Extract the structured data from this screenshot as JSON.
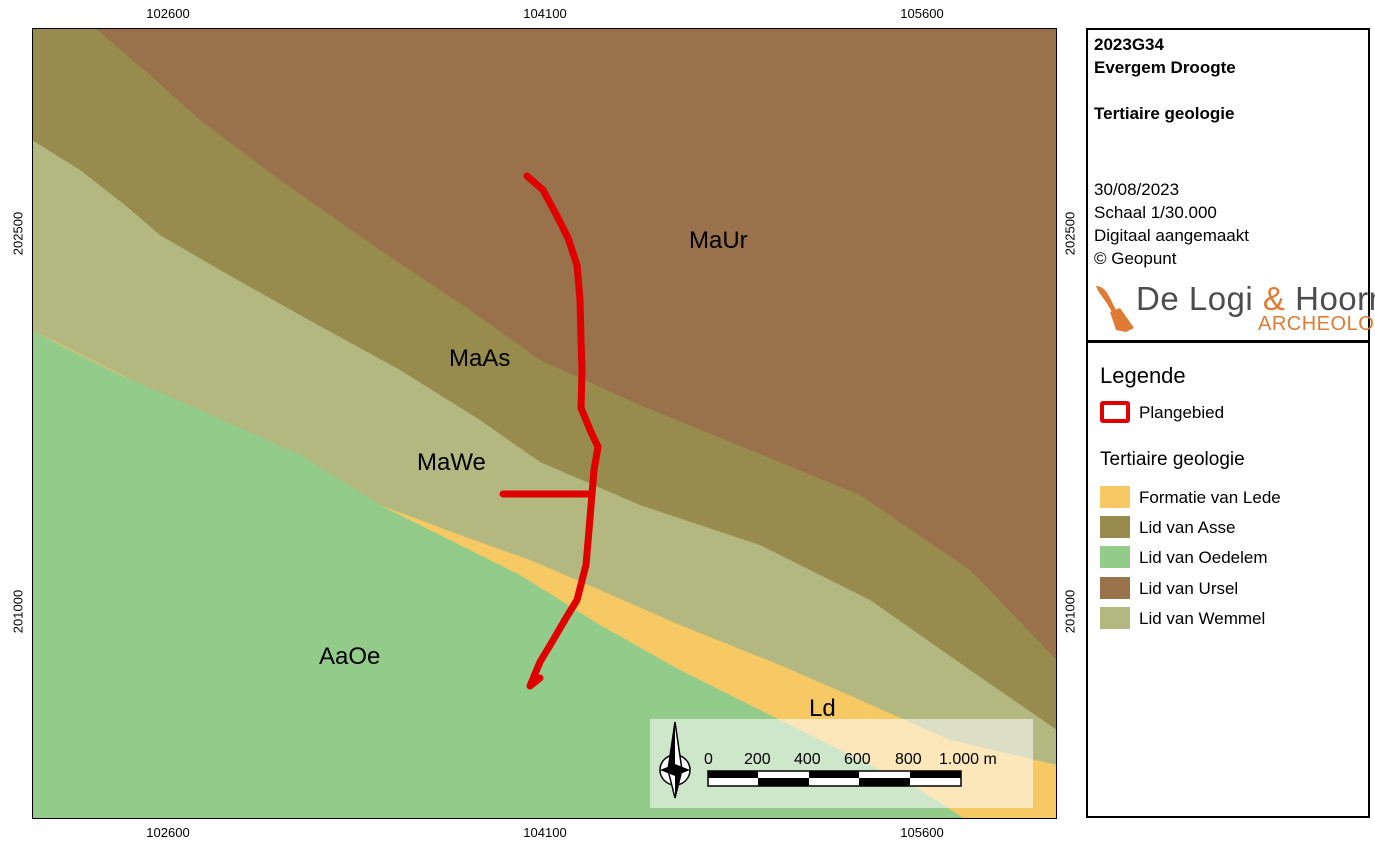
{
  "coordinates": {
    "x_ticks": [
      "102600",
      "104100",
      "105600"
    ],
    "y_ticks": [
      "202500",
      "201000"
    ]
  },
  "map": {
    "labels": {
      "maur": "MaUr",
      "maas": "MaAs",
      "mawe": "MaWe",
      "aaoe": "AaOe",
      "ld": "Ld"
    },
    "colors": {
      "lid_van_ursel": "#99714a",
      "lid_van_asse": "#978b4e",
      "lid_van_wemmel": "#b2b87f",
      "lid_van_oedelem": "#93cb8a",
      "formatie_van_lede": "#f6c965",
      "plangebied": "#e00000"
    }
  },
  "scale_bar": {
    "labels": [
      "0",
      "200",
      "400",
      "600",
      "800",
      "1.000 m"
    ]
  },
  "title_block": {
    "project_code": "2023G34",
    "project_name": "Evergem Droogte",
    "map_title": "Tertiaire geologie",
    "date": "30/08/2023",
    "scale": "Schaal 1/30.000",
    "digital": "Digitaal aangemaakt",
    "source": "© Geopunt",
    "logo_name_1": "De Logi ",
    "logo_amp": "&",
    "logo_name_2": " Hoorne",
    "logo_sub": "ARCHEOLOGIE"
  },
  "legend": {
    "title": "Legende",
    "plangebied": "Plangebied",
    "subtitle": "Tertiaire geologie",
    "items": [
      {
        "label": "Formatie van Lede",
        "color": "#f6c965"
      },
      {
        "label": "Lid van Asse",
        "color": "#978b4e"
      },
      {
        "label": "Lid van Oedelem",
        "color": "#93cb8a"
      },
      {
        "label": "Lid van Ursel",
        "color": "#99714a"
      },
      {
        "label": "Lid van Wemmel",
        "color": "#b2b87f"
      }
    ]
  },
  "icons": {
    "north_arrow": "north-arrow-icon",
    "plangebied_symbol": "outline-rectangle-icon"
  }
}
